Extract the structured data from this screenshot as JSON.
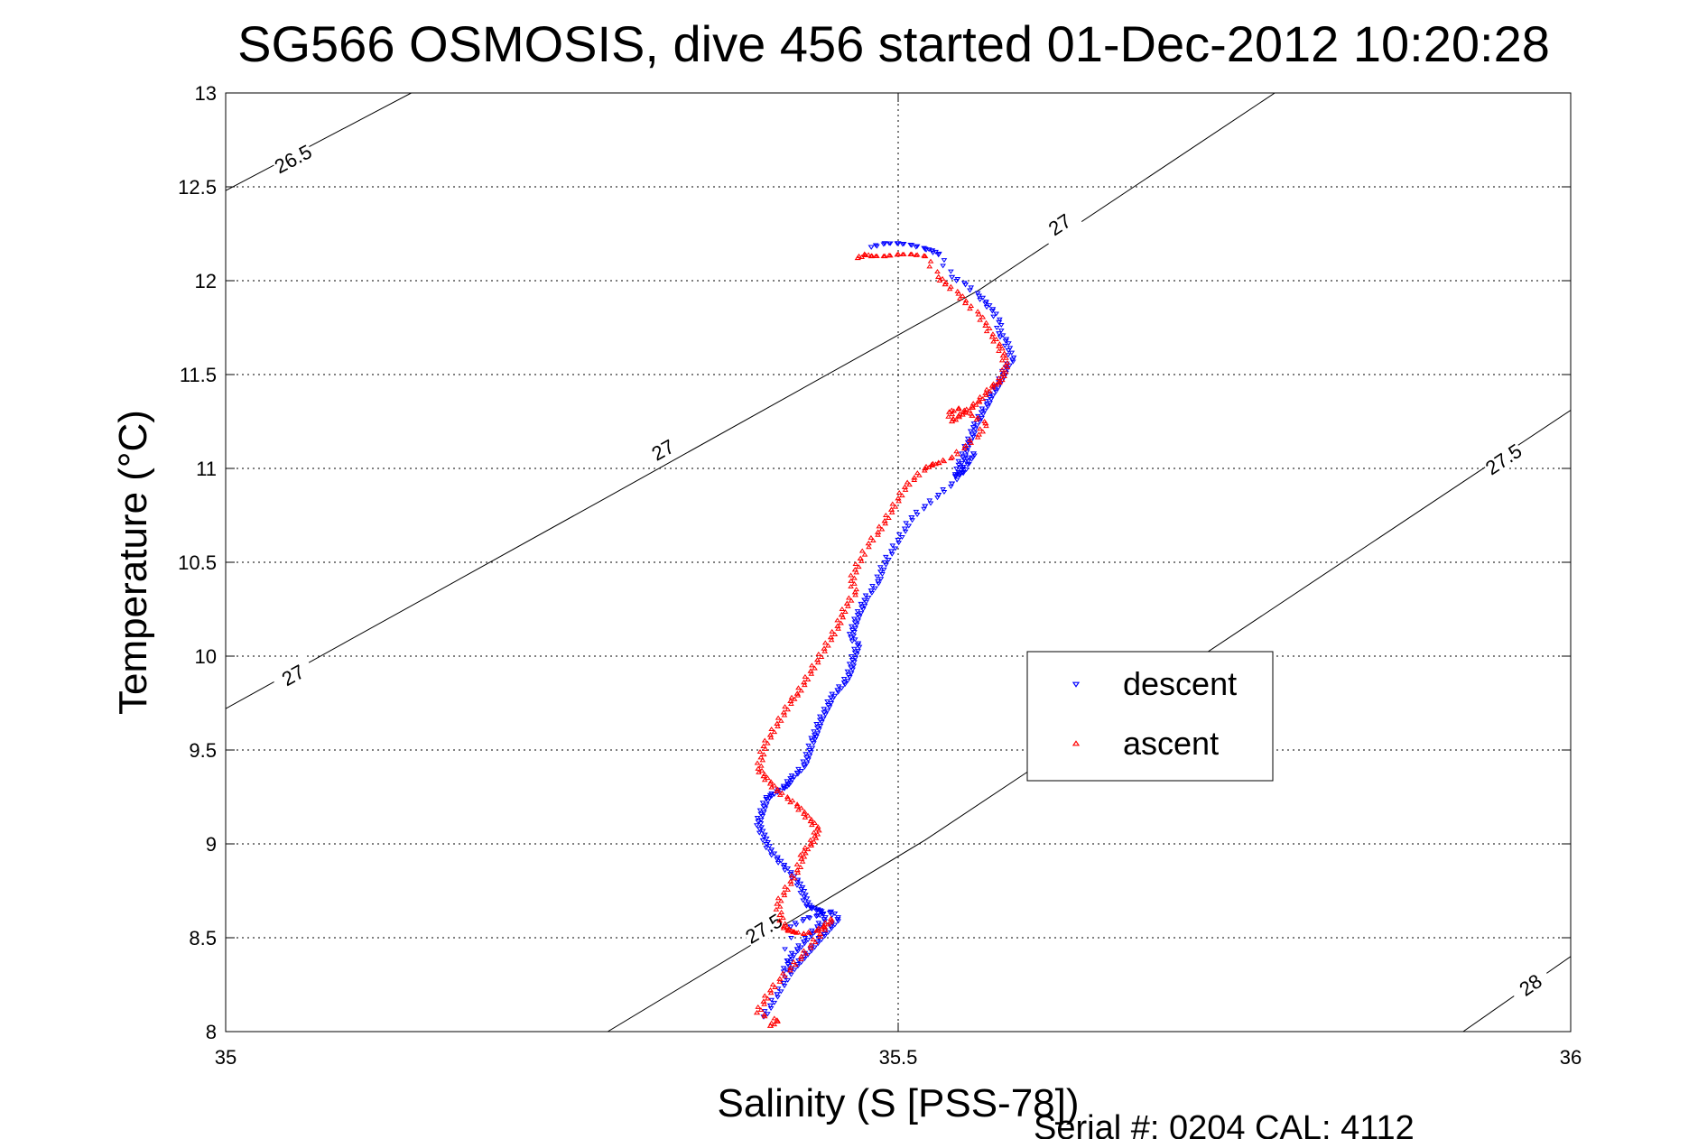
{
  "chart_data": {
    "type": "scatter",
    "title": "SG566 OSMOSIS, dive 456 started 01-Dec-2012 10:20:28",
    "xlabel": "Salinity (S [PSS-78])",
    "ylabel": "Temperature (°C)",
    "xlim": [
      35,
      36
    ],
    "ylim": [
      8,
      13
    ],
    "xticks": [
      35,
      35.5,
      36
    ],
    "xtick_labels": [
      "35",
      "35.5",
      "36"
    ],
    "yticks": [
      8,
      8.5,
      9,
      9.5,
      10,
      10.5,
      11,
      11.5,
      12,
      12.5,
      13
    ],
    "ytick_labels": [
      "8",
      "8.5",
      "9",
      "9.5",
      "10",
      "10.5",
      "11",
      "11.5",
      "12",
      "12.5",
      "13"
    ],
    "grid": true,
    "legend_position": "center-right",
    "footer": "Serial #: 0204  CAL: 4112",
    "density_contours": [
      {
        "sigma": "26.5",
        "points": [
          [
            35.0,
            12.48
          ],
          [
            35.138,
            13.0
          ]
        ],
        "label_at": [
          [
            35.05,
            12.65
          ]
        ]
      },
      {
        "sigma": "27",
        "points": [
          [
            35.0,
            9.72
          ],
          [
            35.282,
            10.84
          ],
          [
            35.56,
            11.95
          ],
          [
            35.78,
            13.0
          ]
        ],
        "label_at": [
          [
            35.05,
            9.9
          ],
          [
            35.325,
            11.1
          ],
          [
            35.62,
            12.3
          ]
        ]
      },
      {
        "sigma": "27.5",
        "points": [
          [
            35.284,
            8.0
          ],
          [
            35.52,
            9.02
          ],
          [
            36.0,
            11.31
          ]
        ],
        "label_at": [
          [
            35.4,
            8.55
          ],
          [
            35.95,
            11.05
          ]
        ]
      },
      {
        "sigma": "28",
        "points": [
          [
            35.92,
            8.0
          ],
          [
            36.0,
            8.4
          ]
        ],
        "label_at": [
          [
            35.97,
            8.25
          ]
        ]
      }
    ],
    "series": [
      {
        "name": "descent",
        "color": "#0000ff",
        "marker": "triangle-down",
        "x": [
          35.48,
          35.49,
          35.5,
          35.51,
          35.52,
          35.525,
          35.53,
          35.54,
          35.55,
          35.56,
          35.565,
          35.57,
          35.575,
          35.575,
          35.58,
          35.582,
          35.585,
          35.58,
          35.578,
          35.575,
          35.572,
          35.568,
          35.566,
          35.562,
          35.56,
          35.556,
          35.555,
          35.552,
          35.55,
          35.548,
          35.545,
          35.545,
          35.543,
          35.548,
          35.552,
          35.556,
          35.548,
          35.54,
          35.53,
          35.52,
          35.51,
          35.505,
          35.5,
          35.495,
          35.49,
          35.487,
          35.485,
          35.48,
          35.475,
          35.473,
          35.47,
          35.468,
          35.466,
          35.465,
          35.47,
          35.468,
          35.466,
          35.465,
          35.463,
          35.46,
          35.455,
          35.45,
          35.448,
          35.445,
          35.442,
          35.44,
          35.438,
          35.436,
          35.434,
          35.432,
          35.43,
          35.425,
          35.42,
          35.418,
          35.415,
          35.41,
          35.405,
          35.402,
          35.4,
          35.398,
          35.396,
          35.397,
          35.4,
          35.402,
          35.405,
          35.41,
          35.415,
          35.42,
          35.425,
          35.428,
          35.43,
          35.432,
          35.435,
          35.44,
          35.442,
          35.445,
          35.44,
          35.435,
          35.43,
          35.425,
          35.42,
          35.418,
          35.415,
          35.42,
          35.43,
          35.44,
          35.45,
          35.455,
          35.45,
          35.445,
          35.44,
          35.435,
          35.43,
          35.425,
          35.42,
          35.415,
          35.41,
          35.405,
          35.4
        ],
        "y": [
          12.18,
          12.2,
          12.2,
          12.19,
          12.17,
          12.16,
          12.14,
          12.02,
          11.98,
          11.92,
          11.88,
          11.84,
          11.78,
          11.72,
          11.68,
          11.63,
          11.58,
          11.54,
          11.5,
          11.46,
          11.42,
          11.38,
          11.34,
          11.3,
          11.26,
          11.22,
          11.18,
          11.14,
          11.1,
          11.06,
          11.02,
          10.98,
          10.96,
          10.98,
          11.04,
          11.08,
          11.0,
          10.92,
          10.86,
          10.8,
          10.74,
          10.68,
          10.62,
          10.56,
          10.5,
          10.45,
          10.4,
          10.35,
          10.3,
          10.26,
          10.22,
          10.18,
          10.14,
          10.1,
          10.06,
          10.02,
          9.98,
          9.94,
          9.9,
          9.86,
          9.82,
          9.78,
          9.74,
          9.7,
          9.66,
          9.62,
          9.58,
          9.55,
          9.5,
          9.46,
          9.42,
          9.38,
          9.35,
          9.32,
          9.3,
          9.28,
          9.26,
          9.24,
          9.2,
          9.16,
          9.12,
          9.08,
          9.04,
          9.0,
          8.96,
          8.92,
          8.88,
          8.84,
          8.8,
          8.76,
          8.72,
          8.68,
          8.66,
          8.65,
          8.64,
          8.6,
          8.56,
          8.52,
          8.48,
          8.44,
          8.4,
          8.36,
          8.32,
          8.56,
          8.6,
          8.62,
          8.64,
          8.6,
          8.56,
          8.52,
          8.48,
          8.44,
          8.4,
          8.36,
          8.32,
          8.26,
          8.2,
          8.14,
          8.08
        ]
      },
      {
        "name": "ascent",
        "color": "#ff0000",
        "marker": "triangle-up",
        "x": [
          35.47,
          35.475,
          35.48,
          35.49,
          35.5,
          35.51,
          35.52,
          35.53,
          35.535,
          35.545,
          35.55,
          35.56,
          35.565,
          35.57,
          35.575,
          35.578,
          35.58,
          35.578,
          35.575,
          35.57,
          35.565,
          35.56,
          35.555,
          35.55,
          35.545,
          35.54,
          35.538,
          35.545,
          35.555,
          35.565,
          35.56,
          35.55,
          35.54,
          35.53,
          35.525,
          35.52,
          35.512,
          35.505,
          35.5,
          35.495,
          35.49,
          35.485,
          35.478,
          35.472,
          35.468,
          35.465,
          35.468,
          35.462,
          35.458,
          35.455,
          35.45,
          35.445,
          35.44,
          35.435,
          35.43,
          35.425,
          35.42,
          35.415,
          35.41,
          35.405,
          35.4,
          35.398,
          35.396,
          35.4,
          35.405,
          35.41,
          35.418,
          35.425,
          35.43,
          35.435,
          35.44,
          35.438,
          35.435,
          35.43,
          35.428,
          35.425,
          35.42,
          35.415,
          35.41,
          35.412,
          35.415,
          35.418,
          35.422,
          35.43,
          35.44,
          35.445,
          35.45,
          35.442,
          35.435,
          35.428,
          35.42,
          35.412,
          35.405,
          35.4,
          35.395,
          35.41,
          35.405
        ],
        "y": [
          12.12,
          12.14,
          12.13,
          12.13,
          12.14,
          12.14,
          12.13,
          12.02,
          11.98,
          11.93,
          11.88,
          11.82,
          11.76,
          11.7,
          11.65,
          11.6,
          11.55,
          11.5,
          11.46,
          11.44,
          11.4,
          11.36,
          11.33,
          11.3,
          11.28,
          11.25,
          11.3,
          11.32,
          11.28,
          11.24,
          11.18,
          11.12,
          11.06,
          11.03,
          11.02,
          11.0,
          10.95,
          10.9,
          10.84,
          10.78,
          10.72,
          10.66,
          10.6,
          10.52,
          10.46,
          10.4,
          10.34,
          10.28,
          10.22,
          10.16,
          10.1,
          10.04,
          9.98,
          9.92,
          9.86,
          9.8,
          9.76,
          9.7,
          9.64,
          9.58,
          9.52,
          9.46,
          9.4,
          9.36,
          9.32,
          9.28,
          9.24,
          9.2,
          9.16,
          9.12,
          9.08,
          9.04,
          9.0,
          8.96,
          8.92,
          8.86,
          8.8,
          8.74,
          8.68,
          8.62,
          8.56,
          8.54,
          8.53,
          8.52,
          8.54,
          8.56,
          8.6,
          8.52,
          8.46,
          8.4,
          8.34,
          8.28,
          8.22,
          8.16,
          8.1,
          8.06,
          8.03
        ]
      }
    ]
  }
}
